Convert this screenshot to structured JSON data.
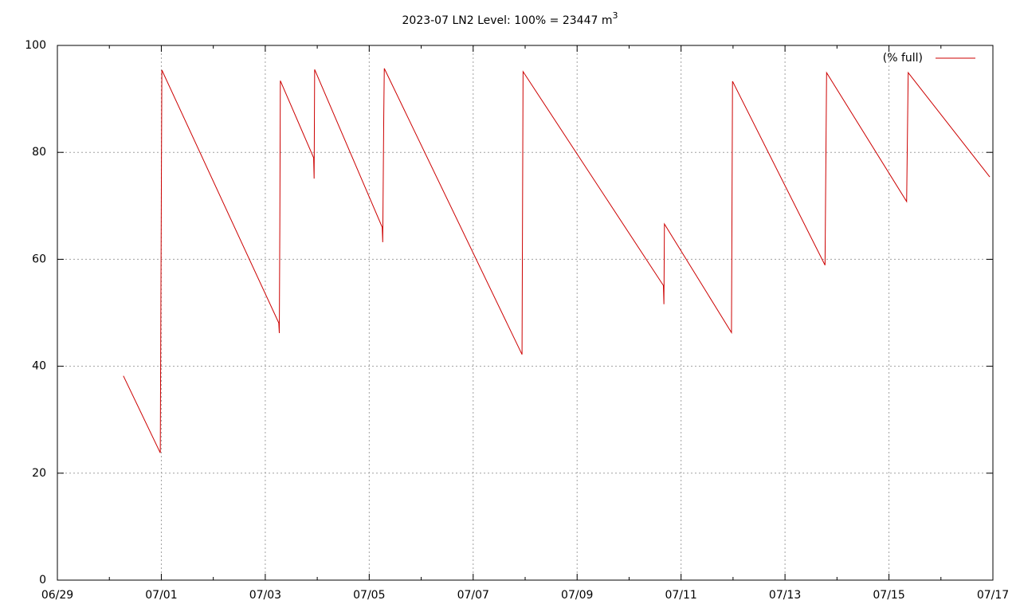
{
  "chart_data": {
    "type": "line",
    "title": "2023-07 LN2 Level: 100% = 23447 m",
    "title_superscript": "3",
    "x": [
      1.27,
      1.98,
      2.01,
      4.26,
      4.27,
      4.28,
      4.29,
      4.93,
      4.94,
      4.95,
      6.25,
      6.26,
      6.28,
      6.29,
      8.94,
      8.96,
      11.66,
      11.67,
      11.68,
      12.97,
      12.99,
      14.77,
      14.8,
      16.34,
      16.37,
      17.94
    ],
    "series": [
      {
        "name": "(% full)",
        "color": "#cc0000",
        "values": [
          38.2,
          23.8,
          95.4,
          48.1,
          46.2,
          66.0,
          93.4,
          79.0,
          75.1,
          95.5,
          66.0,
          63.2,
          87.0,
          95.7,
          42.2,
          95.1,
          55.1,
          51.6,
          66.6,
          46.3,
          93.3,
          58.9,
          94.9,
          70.8,
          94.9,
          75.4
        ]
      }
    ],
    "xlim": [
      0,
      18
    ],
    "xticks": [
      {
        "value": 0,
        "label": "06/29"
      },
      {
        "value": 2,
        "label": "07/01"
      },
      {
        "value": 4,
        "label": "07/03"
      },
      {
        "value": 6,
        "label": "07/05"
      },
      {
        "value": 8,
        "label": "07/07"
      },
      {
        "value": 10,
        "label": "07/09"
      },
      {
        "value": 12,
        "label": "07/11"
      },
      {
        "value": 14,
        "label": "07/13"
      },
      {
        "value": 16,
        "label": "07/15"
      },
      {
        "value": 18,
        "label": "07/17"
      }
    ],
    "ylim": [
      0,
      100
    ],
    "yticks": [
      0,
      20,
      40,
      60,
      80,
      100
    ],
    "grid": true,
    "legend": "top-right"
  }
}
